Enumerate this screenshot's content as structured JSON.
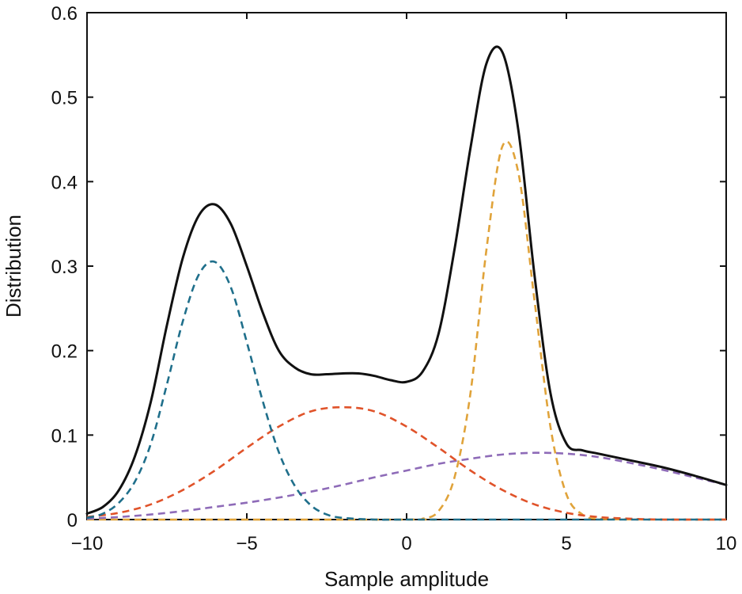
{
  "chart_data": {
    "type": "line",
    "title": "",
    "xlabel": "Sample amplitude",
    "ylabel": "Distribution",
    "xlim": [
      -10,
      10
    ],
    "ylim": [
      0,
      0.6
    ],
    "xticks": [
      -10,
      -5,
      0,
      5,
      10
    ],
    "xtick_labels": [
      "−10",
      "−5",
      "0",
      "5",
      "10"
    ],
    "yticks": [
      0,
      0.1,
      0.2,
      0.3,
      0.4,
      0.5,
      0.6
    ],
    "ytick_labels": [
      "0",
      "0.1",
      "0.2",
      "0.3",
      "0.4",
      "0.5",
      "0.6"
    ],
    "grid": false,
    "legend": "none",
    "series": [
      {
        "style": "solid",
        "color": "#111111",
        "x": [
          -10,
          -9.5,
          -9,
          -8.5,
          -8,
          -7.5,
          -7,
          -6.5,
          -6,
          -5.5,
          -5,
          -4.5,
          -4,
          -3.5,
          -3,
          -2.5,
          -2,
          -1.5,
          -1,
          -0.5,
          0,
          0.5,
          1,
          1.5,
          2,
          2.5,
          3,
          3.5,
          4,
          4.5,
          5,
          5.5,
          6,
          7,
          8,
          9,
          10
        ],
        "y": [
          0.007,
          0.015,
          0.035,
          0.075,
          0.14,
          0.23,
          0.31,
          0.36,
          0.373,
          0.35,
          0.3,
          0.245,
          0.2,
          0.18,
          0.172,
          0.172,
          0.173,
          0.173,
          0.17,
          0.165,
          0.163,
          0.175,
          0.22,
          0.32,
          0.44,
          0.54,
          0.553,
          0.46,
          0.29,
          0.15,
          0.09,
          0.082,
          0.078,
          0.07,
          0.062,
          0.052,
          0.041
        ]
      },
      {
        "style": "dashed",
        "color": "#1F6F8B",
        "x": [
          -10,
          -9.5,
          -9,
          -8.5,
          -8,
          -7.5,
          -7,
          -6.5,
          -6,
          -5.5,
          -5,
          -4.5,
          -4,
          -3.5,
          -3,
          -2.5,
          -2,
          -1,
          0,
          2,
          4,
          6,
          8,
          10
        ],
        "y": [
          0.002,
          0.007,
          0.02,
          0.045,
          0.09,
          0.16,
          0.235,
          0.29,
          0.305,
          0.275,
          0.21,
          0.14,
          0.08,
          0.04,
          0.017,
          0.006,
          0.002,
          0.0,
          0.0,
          0.0,
          0.0,
          0.0,
          0.0,
          0.0
        ]
      },
      {
        "style": "dashed",
        "color": "#E0532A",
        "x": [
          -10,
          -9,
          -8,
          -7,
          -6,
          -5,
          -4,
          -3,
          -2,
          -1,
          0,
          1,
          2,
          3,
          4,
          5,
          6,
          7,
          8,
          9,
          10
        ],
        "y": [
          0.003,
          0.008,
          0.018,
          0.035,
          0.058,
          0.085,
          0.11,
          0.128,
          0.133,
          0.128,
          0.11,
          0.085,
          0.058,
          0.035,
          0.018,
          0.008,
          0.003,
          0.001,
          0.0,
          0.0,
          0.0
        ]
      },
      {
        "style": "dashed",
        "color": "#8E6BB8",
        "x": [
          -10,
          -9,
          -8,
          -7,
          -6,
          -5,
          -4,
          -3,
          -2,
          -1,
          0,
          1,
          2,
          3,
          4,
          5,
          6,
          7,
          8,
          9,
          10
        ],
        "y": [
          0.001,
          0.003,
          0.006,
          0.01,
          0.015,
          0.02,
          0.026,
          0.033,
          0.041,
          0.05,
          0.058,
          0.066,
          0.072,
          0.077,
          0.079,
          0.078,
          0.074,
          0.067,
          0.059,
          0.05,
          0.041
        ]
      },
      {
        "style": "dashed",
        "color": "#E0A33A",
        "x": [
          -10,
          0,
          0.5,
          1,
          1.5,
          2,
          2.5,
          3,
          3.5,
          4,
          4.5,
          5,
          5.5,
          6,
          8,
          10
        ],
        "y": [
          0.0,
          0.0,
          0.001,
          0.01,
          0.05,
          0.15,
          0.32,
          0.442,
          0.41,
          0.26,
          0.11,
          0.03,
          0.006,
          0.001,
          0.0,
          0.0
        ]
      }
    ]
  }
}
